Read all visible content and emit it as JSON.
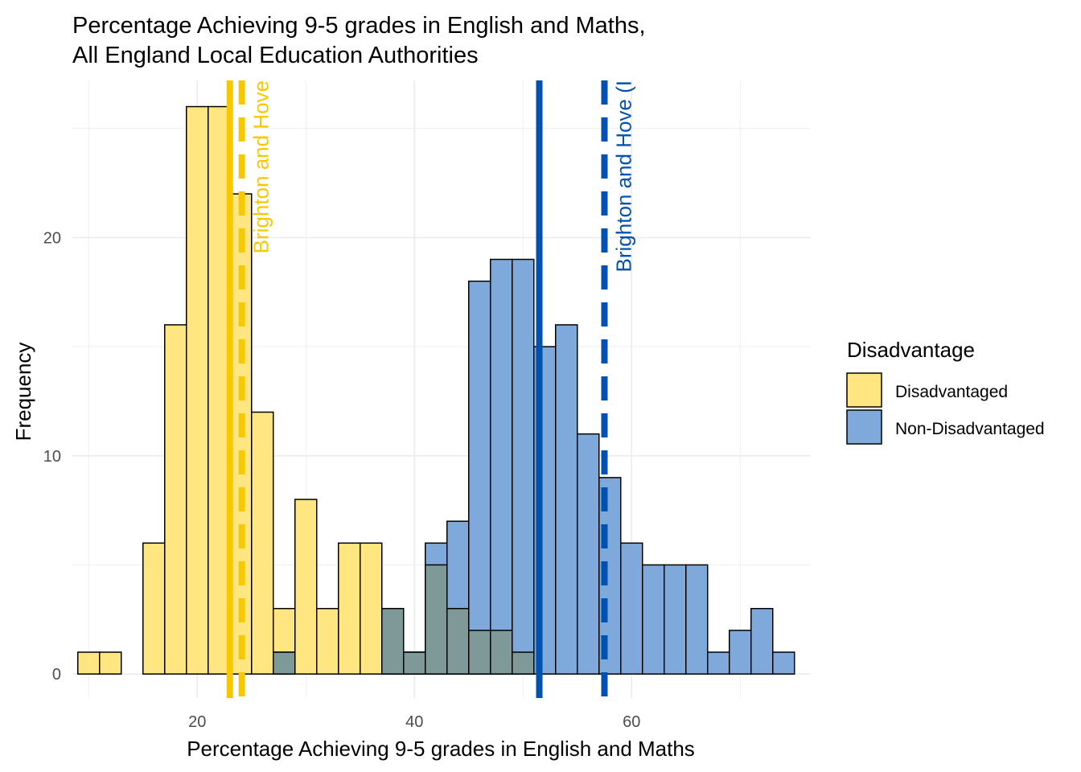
{
  "chart_data": {
    "type": "bar",
    "title_line1": "Percentage Achieving 9-5 grades in English and Maths,",
    "title_line2": "All England Local Education Authorities",
    "xlabel": "Percentage Achieving 9-5 grades in English and Maths",
    "ylabel": "Frequency",
    "xlim": [
      8.5,
      76.5
    ],
    "ylim": [
      -1.1,
      27.2
    ],
    "x_ticks": [
      20,
      40,
      60
    ],
    "y_ticks": [
      0,
      10,
      20
    ],
    "grid": true,
    "bin_width": 2,
    "legend": {
      "title": "Disadvantage",
      "placement": "right",
      "items": [
        {
          "label": "Disadvantaged",
          "color": "#FFE680"
        },
        {
          "label": "Non-Disadvantaged",
          "color": "#7FA8DB"
        }
      ]
    },
    "series": [
      {
        "name": "Disadvantaged",
        "color": "#FFE680",
        "bins": [
          {
            "x0": 9,
            "x1": 11,
            "count": 1
          },
          {
            "x0": 11,
            "x1": 13,
            "count": 1
          },
          {
            "x0": 15,
            "x1": 17,
            "count": 6
          },
          {
            "x0": 17,
            "x1": 19,
            "count": 16
          },
          {
            "x0": 19,
            "x1": 21,
            "count": 26
          },
          {
            "x0": 21,
            "x1": 23,
            "count": 26
          },
          {
            "x0": 23,
            "x1": 25,
            "count": 22
          },
          {
            "x0": 25,
            "x1": 27,
            "count": 12
          },
          {
            "x0": 27,
            "x1": 29,
            "count": 3
          },
          {
            "x0": 29,
            "x1": 31,
            "count": 8
          },
          {
            "x0": 31,
            "x1": 33,
            "count": 3
          },
          {
            "x0": 33,
            "x1": 35,
            "count": 6
          },
          {
            "x0": 35,
            "x1": 37,
            "count": 6
          },
          {
            "x0": 37,
            "x1": 39,
            "count": 3
          },
          {
            "x0": 39,
            "x1": 41,
            "count": 1
          },
          {
            "x0": 41,
            "x1": 43,
            "count": 5
          },
          {
            "x0": 43,
            "x1": 45,
            "count": 3
          },
          {
            "x0": 45,
            "x1": 47,
            "count": 2
          },
          {
            "x0": 47,
            "x1": 49,
            "count": 2
          },
          {
            "x0": 49,
            "x1": 51,
            "count": 1
          }
        ]
      },
      {
        "name": "Non-Disadvantaged",
        "color": "#7FA8DB",
        "bins": [
          {
            "x0": 27,
            "x1": 29,
            "count": 1
          },
          {
            "x0": 37,
            "x1": 39,
            "count": 3
          },
          {
            "x0": 39,
            "x1": 41,
            "count": 1
          },
          {
            "x0": 41,
            "x1": 43,
            "count": 6
          },
          {
            "x0": 43,
            "x1": 45,
            "count": 7
          },
          {
            "x0": 45,
            "x1": 47,
            "count": 18
          },
          {
            "x0": 47,
            "x1": 49,
            "count": 19
          },
          {
            "x0": 49,
            "x1": 51,
            "count": 19
          },
          {
            "x0": 51,
            "x1": 53,
            "count": 15
          },
          {
            "x0": 53,
            "x1": 55,
            "count": 16
          },
          {
            "x0": 55,
            "x1": 57,
            "count": 11
          },
          {
            "x0": 57,
            "x1": 59,
            "count": 9
          },
          {
            "x0": 59,
            "x1": 61,
            "count": 6
          },
          {
            "x0": 61,
            "x1": 63,
            "count": 5
          },
          {
            "x0": 63,
            "x1": 65,
            "count": 5
          },
          {
            "x0": 65,
            "x1": 67,
            "count": 5
          },
          {
            "x0": 67,
            "x1": 69,
            "count": 1
          },
          {
            "x0": 69,
            "x1": 71,
            "count": 2
          },
          {
            "x0": 71,
            "x1": 73,
            "count": 3
          },
          {
            "x0": 73,
            "x1": 75,
            "count": 1
          }
        ]
      }
    ],
    "overlap_color": "#7F9999",
    "reference_lines": [
      {
        "x": 23.0,
        "style": "solid",
        "color": "#F5C800",
        "label": ""
      },
      {
        "x": 24.1,
        "style": "dashed",
        "color": "#F5C800",
        "label": "Brighton and Hove"
      },
      {
        "x": 51.5,
        "style": "solid",
        "color": "#0051B0",
        "label": ""
      },
      {
        "x": 57.5,
        "style": "dashed",
        "color": "#0051B0",
        "label": "Brighton and Hove (I"
      }
    ]
  }
}
